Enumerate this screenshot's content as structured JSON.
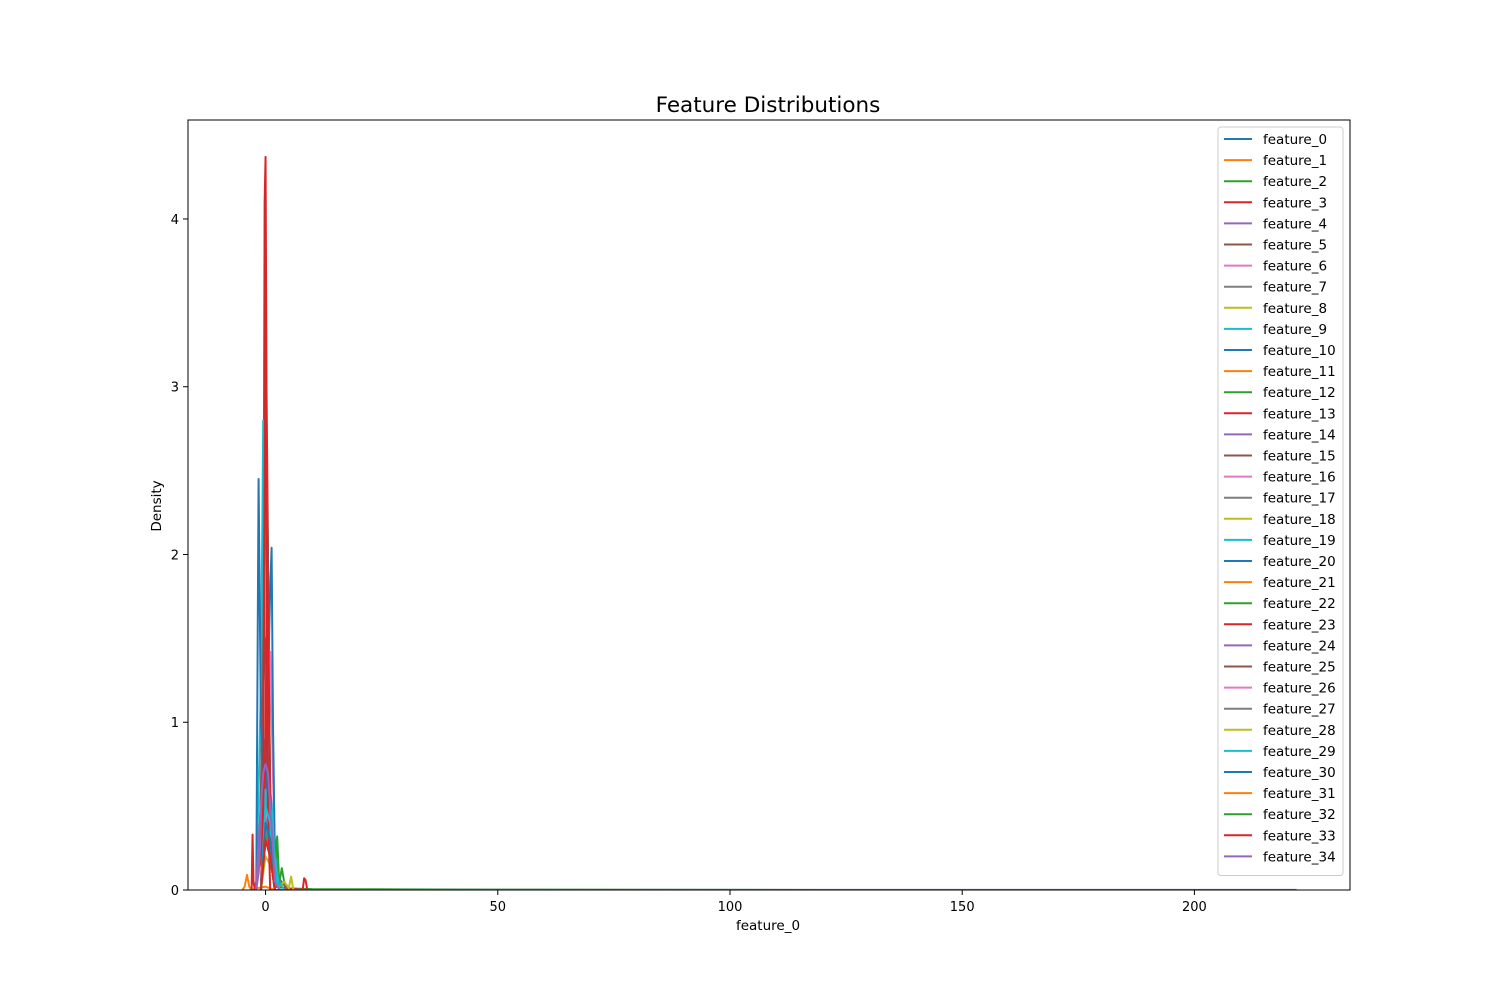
{
  "chart_data": {
    "type": "line",
    "title": "Feature Distributions",
    "xlabel": "feature_0",
    "ylabel": "Density",
    "xlim": [
      -16.7,
      233.5
    ],
    "ylim": [
      0,
      4.59
    ],
    "x_ticks": [
      0,
      50,
      100,
      150,
      200
    ],
    "y_ticks": [
      0,
      1,
      2,
      3,
      4
    ],
    "grid": false,
    "legend_position": "upper right",
    "series": [
      {
        "name": "feature_0",
        "color": "#1f77b4",
        "x": [
          -2.5,
          -1.5,
          -1.0,
          -0.5,
          0.0,
          0.5,
          1.0,
          2.0,
          3.0
        ],
        "y": [
          0,
          0.1,
          0.6,
          1.2,
          1.5,
          1.1,
          0.5,
          0.1,
          0
        ]
      },
      {
        "name": "feature_1",
        "color": "#ff7f0e",
        "x": [
          -5.0,
          -4.5,
          -4.0,
          -3.5,
          -3.0,
          -2.0,
          0.0,
          2.0
        ],
        "y": [
          0,
          0.02,
          0.09,
          0.02,
          0,
          0.01,
          0.02,
          0
        ]
      },
      {
        "name": "feature_2",
        "color": "#2ca02c",
        "x": [
          -1.0,
          0.0,
          1.0,
          2.0,
          3.0,
          3.5,
          4.0,
          5.0,
          10.0,
          30.0,
          60.0,
          120.0
        ],
        "y": [
          0,
          0.3,
          0.4,
          0.2,
          0.05,
          0.13,
          0.05,
          0.01,
          0.005,
          0.004,
          0.002,
          0
        ]
      },
      {
        "name": "feature_3",
        "color": "#d62728",
        "x": [
          -3.0,
          -2.8,
          -2.6,
          -2.3,
          -1.0,
          -0.5,
          -0.2,
          0.0,
          0.2,
          0.5,
          0.8,
          1.0,
          1.5,
          2.0,
          8.0,
          8.3,
          8.6,
          9.0
        ],
        "y": [
          0,
          0.33,
          0.05,
          0.0,
          0.2,
          1.0,
          4.1,
          4.37,
          3.0,
          2.1,
          1.0,
          0.3,
          0.1,
          0.02,
          0,
          0.07,
          0.06,
          0
        ]
      },
      {
        "name": "feature_4",
        "color": "#9467bd",
        "x": [
          -2.0,
          -1.5,
          -1.0,
          -0.5,
          0.0,
          0.5,
          1.0,
          1.5,
          2.0,
          50.0,
          150.0,
          222.0
        ],
        "y": [
          0,
          0.1,
          0.4,
          0.6,
          0.7,
          0.6,
          0.4,
          0.1,
          0,
          0.001,
          0.001,
          0.001
        ]
      },
      {
        "name": "feature_5",
        "color": "#8c564b",
        "x": [
          -2.0,
          -1.0,
          -0.5,
          0.0,
          0.5,
          1.0,
          2.0,
          4.0,
          5.0
        ],
        "y": [
          0,
          0.5,
          2.0,
          3.05,
          2.0,
          0.5,
          0.1,
          0.03,
          0
        ]
      },
      {
        "name": "feature_6",
        "color": "#e377c2",
        "x": [
          -1.0,
          0.0,
          0.5,
          1.0,
          1.5,
          2.0,
          3.0
        ],
        "y": [
          0,
          0.4,
          1.0,
          1.42,
          0.8,
          0.2,
          0
        ]
      },
      {
        "name": "feature_7",
        "color": "#7f7f7f",
        "x": [
          -1.0,
          -0.5,
          0.0,
          0.5,
          1.0,
          2.0
        ],
        "y": [
          0,
          0.5,
          0.9,
          0.6,
          0.2,
          0
        ]
      },
      {
        "name": "feature_8",
        "color": "#bcbd22",
        "x": [
          -1.0,
          0.0,
          1.0,
          2.0,
          3.0,
          4.0,
          5.0,
          5.5,
          6.0
        ],
        "y": [
          0,
          0.2,
          0.15,
          0.05,
          0.02,
          0.05,
          0.01,
          0.08,
          0
        ]
      },
      {
        "name": "feature_9",
        "color": "#17becf",
        "x": [
          -2.0,
          -1.0,
          -0.5,
          0.0,
          0.5,
          1.0,
          2.0,
          3.0,
          4.0
        ],
        "y": [
          0,
          1.2,
          2.8,
          2.2,
          1.5,
          0.6,
          0.3,
          0.05,
          0
        ]
      },
      {
        "name": "feature_10",
        "color": "#1f77b4",
        "x": [
          -2.0,
          -1.5,
          -1.0,
          0.0,
          0.5,
          1.0,
          1.3,
          1.6,
          2.0,
          3.0
        ],
        "y": [
          0,
          2.45,
          1.0,
          0.4,
          1.2,
          1.8,
          2.04,
          1.0,
          0.2,
          0
        ]
      },
      {
        "name": "feature_11",
        "color": "#ff7f0e",
        "x": [
          -2.0,
          -1.0,
          0.0,
          1.0,
          2.0
        ],
        "y": [
          0,
          0.3,
          0.5,
          0.3,
          0
        ]
      },
      {
        "name": "feature_12",
        "color": "#2ca02c",
        "x": [
          -1.0,
          0.0,
          1.0,
          2.0,
          2.5,
          3.0
        ],
        "y": [
          0,
          0.3,
          0.2,
          0.1,
          0.32,
          0
        ]
      },
      {
        "name": "feature_13",
        "color": "#d62728",
        "x": [
          -1.0,
          0.0,
          0.3,
          0.6,
          1.0,
          1.5,
          2.0
        ],
        "y": [
          0,
          0.8,
          2.1,
          1.5,
          0.6,
          0.1,
          0
        ]
      },
      {
        "name": "feature_14",
        "color": "#9467bd",
        "x": [
          -2.0,
          -1.0,
          0.0,
          1.0,
          2.0
        ],
        "y": [
          0,
          0.3,
          0.5,
          0.3,
          0
        ]
      },
      {
        "name": "feature_15",
        "color": "#8c564b",
        "x": [
          -1.0,
          0.0,
          1.0,
          2.0,
          3.0
        ],
        "y": [
          0,
          0.4,
          0.3,
          0.1,
          0
        ]
      },
      {
        "name": "feature_16",
        "color": "#e377c2",
        "x": [
          -1.0,
          0.0,
          1.0,
          2.0
        ],
        "y": [
          0,
          0.5,
          0.3,
          0
        ]
      },
      {
        "name": "feature_17",
        "color": "#7f7f7f",
        "x": [
          -1.0,
          0.0,
          1.0,
          2.0
        ],
        "y": [
          0,
          0.4,
          0.2,
          0
        ]
      },
      {
        "name": "feature_18",
        "color": "#bcbd22",
        "x": [
          -1.0,
          0.0,
          1.0,
          2.0
        ],
        "y": [
          0,
          0.3,
          0.2,
          0
        ]
      },
      {
        "name": "feature_19",
        "color": "#17becf",
        "x": [
          -1.0,
          0.0,
          1.0,
          1.5,
          2.0,
          3.0
        ],
        "y": [
          0,
          0.6,
          0.3,
          0.47,
          0.1,
          0
        ]
      },
      {
        "name": "feature_20",
        "color": "#1f77b4",
        "x": [
          -1.0,
          0.0,
          1.0,
          2.0
        ],
        "y": [
          0,
          0.4,
          0.3,
          0
        ]
      },
      {
        "name": "feature_21",
        "color": "#ff7f0e",
        "x": [
          -1.0,
          0.0,
          1.0,
          2.0
        ],
        "y": [
          0,
          0.3,
          0.2,
          0
        ]
      },
      {
        "name": "feature_22",
        "color": "#2ca02c",
        "x": [
          -1.0,
          0.0,
          1.0,
          2.0
        ],
        "y": [
          0,
          0.3,
          0.2,
          0
        ]
      },
      {
        "name": "feature_23",
        "color": "#d62728",
        "x": [
          -1.0,
          -0.5,
          0.0,
          0.5,
          1.0
        ],
        "y": [
          0,
          0.5,
          3.6,
          0.5,
          0
        ]
      },
      {
        "name": "feature_24",
        "color": "#9467bd",
        "x": [
          -1.0,
          0.0,
          1.0,
          2.0
        ],
        "y": [
          0,
          0.4,
          0.3,
          0
        ]
      },
      {
        "name": "feature_25",
        "color": "#8c564b",
        "x": [
          -1.0,
          0.0,
          1.0,
          2.0
        ],
        "y": [
          0,
          0.3,
          0.2,
          0
        ]
      },
      {
        "name": "feature_26",
        "color": "#e377c2",
        "x": [
          -1.0,
          0.0,
          1.0,
          2.0
        ],
        "y": [
          0,
          0.3,
          0.2,
          0
        ]
      },
      {
        "name": "feature_27",
        "color": "#7f7f7f",
        "x": [
          -1.0,
          0.0,
          1.0,
          2.0
        ],
        "y": [
          0,
          0.3,
          0.2,
          0
        ]
      },
      {
        "name": "feature_28",
        "color": "#bcbd22",
        "x": [
          -1.0,
          0.0,
          1.0,
          2.0
        ],
        "y": [
          0,
          0.3,
          0.2,
          0
        ]
      },
      {
        "name": "feature_29",
        "color": "#17becf",
        "x": [
          -1.0,
          0.0,
          1.0,
          2.0,
          3.0
        ],
        "y": [
          0,
          0.5,
          0.4,
          0.2,
          0
        ]
      },
      {
        "name": "feature_30",
        "color": "#1f77b4",
        "x": [
          -1.0,
          0.0,
          1.0,
          2.0
        ],
        "y": [
          0,
          0.4,
          0.3,
          0
        ]
      },
      {
        "name": "feature_31",
        "color": "#ff7f0e",
        "x": [
          -1.0,
          0.0,
          1.0,
          2.0
        ],
        "y": [
          0,
          0.3,
          0.2,
          0
        ]
      },
      {
        "name": "feature_32",
        "color": "#2ca02c",
        "x": [
          -1.0,
          0.0,
          1.0,
          2.0
        ],
        "y": [
          0,
          0.3,
          0.2,
          0
        ]
      },
      {
        "name": "feature_33",
        "color": "#d62728",
        "x": [
          -1.0,
          0.0,
          1.0,
          2.0
        ],
        "y": [
          0,
          0.3,
          0.2,
          0
        ]
      },
      {
        "name": "feature_34",
        "color": "#9467bd",
        "x": [
          -2.0,
          -1.5,
          -1.0,
          -0.5,
          0.0,
          0.5,
          1.0,
          1.5,
          2.0,
          3.0
        ],
        "y": [
          0,
          0.3,
          0.5,
          0.7,
          0.75,
          0.7,
          0.5,
          0.3,
          0.05,
          0
        ]
      }
    ]
  }
}
